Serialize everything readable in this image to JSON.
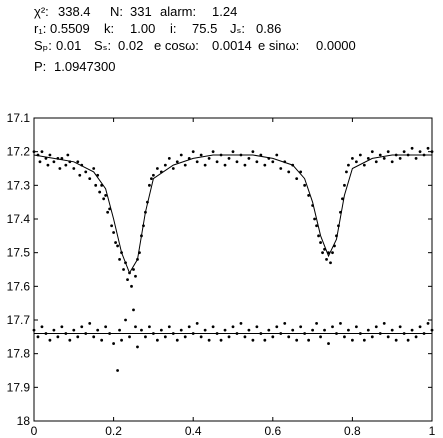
{
  "stats": {
    "chi2_label": "χ²:",
    "chi2_value": "338.4",
    "n_label": "N:",
    "n_value": "331",
    "alarm_label": "alarm:",
    "alarm_value": "1.24",
    "r1_label": "r₁:",
    "r1_value": "0.5509",
    "k_label": "k:",
    "k_value": "1.00",
    "i_label": "i:",
    "i_value": "75.5",
    "js_label": "Jₛ:",
    "js_value": "0.86",
    "sp_label": "Sₚ:",
    "sp_value": "0.01",
    "ss_label": "Sₛ:",
    "ss_value": "0.02",
    "ecosw_label": "e cosω:",
    "ecosw_value": "0.0014",
    "esinw_label": "e sinω:",
    "esinw_value": "0.0000",
    "p_label": "P:",
    "p_value": "1.0947300"
  },
  "chart_data": {
    "type": "scatter",
    "title": "",
    "xlabel": "",
    "ylabel": "",
    "xlim": [
      0,
      1
    ],
    "ylim": [
      17.1,
      18
    ],
    "y_inverted": true,
    "grid": false,
    "xticks": [
      "0",
      "0.2",
      "0.4",
      "0.6",
      "0.8",
      "1"
    ],
    "yticks": [
      "17.1",
      "17.2",
      "17.3",
      "17.4",
      "17.5",
      "17.6",
      "17.7",
      "17.8",
      "17.9",
      "18"
    ],
    "light_curve_points": [
      [
        0.0,
        17.2
      ],
      [
        0.01,
        17.21
      ],
      [
        0.015,
        17.23
      ],
      [
        0.02,
        17.2
      ],
      [
        0.03,
        17.22
      ],
      [
        0.035,
        17.24
      ],
      [
        0.04,
        17.21
      ],
      [
        0.05,
        17.23
      ],
      [
        0.06,
        17.22
      ],
      [
        0.065,
        17.25
      ],
      [
        0.07,
        17.22
      ],
      [
        0.08,
        17.24
      ],
      [
        0.085,
        17.21
      ],
      [
        0.09,
        17.23
      ],
      [
        0.1,
        17.25
      ],
      [
        0.11,
        17.23
      ],
      [
        0.115,
        17.27
      ],
      [
        0.12,
        17.24
      ],
      [
        0.13,
        17.26
      ],
      [
        0.14,
        17.28
      ],
      [
        0.15,
        17.25
      ],
      [
        0.155,
        17.3
      ],
      [
        0.16,
        17.27
      ],
      [
        0.165,
        17.32
      ],
      [
        0.17,
        17.3
      ],
      [
        0.175,
        17.34
      ],
      [
        0.18,
        17.33
      ],
      [
        0.185,
        17.38
      ],
      [
        0.19,
        17.37
      ],
      [
        0.195,
        17.42
      ],
      [
        0.2,
        17.44
      ],
      [
        0.205,
        17.47
      ],
      [
        0.21,
        17.48
      ],
      [
        0.215,
        17.52
      ],
      [
        0.22,
        17.5
      ],
      [
        0.225,
        17.55
      ],
      [
        0.23,
        17.53
      ],
      [
        0.235,
        17.58
      ],
      [
        0.24,
        17.56
      ],
      [
        0.245,
        17.6
      ],
      [
        0.25,
        17.55
      ],
      [
        0.255,
        17.57
      ],
      [
        0.26,
        17.52
      ],
      [
        0.265,
        17.5
      ],
      [
        0.27,
        17.45
      ],
      [
        0.275,
        17.42
      ],
      [
        0.28,
        17.38
      ],
      [
        0.285,
        17.35
      ],
      [
        0.29,
        17.3
      ],
      [
        0.295,
        17.28
      ],
      [
        0.3,
        17.27
      ],
      [
        0.31,
        17.25
      ],
      [
        0.32,
        17.26
      ],
      [
        0.33,
        17.24
      ],
      [
        0.34,
        17.22
      ],
      [
        0.35,
        17.25
      ],
      [
        0.36,
        17.23
      ],
      [
        0.37,
        17.21
      ],
      [
        0.38,
        17.24
      ],
      [
        0.39,
        17.22
      ],
      [
        0.4,
        17.2
      ],
      [
        0.41,
        17.23
      ],
      [
        0.42,
        17.21
      ],
      [
        0.43,
        17.24
      ],
      [
        0.44,
        17.22
      ],
      [
        0.45,
        17.2
      ],
      [
        0.46,
        17.23
      ],
      [
        0.47,
        17.21
      ],
      [
        0.48,
        17.24
      ],
      [
        0.49,
        17.22
      ],
      [
        0.5,
        17.2
      ],
      [
        0.51,
        17.23
      ],
      [
        0.52,
        17.21
      ],
      [
        0.53,
        17.24
      ],
      [
        0.54,
        17.22
      ],
      [
        0.55,
        17.2
      ],
      [
        0.56,
        17.23
      ],
      [
        0.57,
        17.21
      ],
      [
        0.58,
        17.24
      ],
      [
        0.59,
        17.22
      ],
      [
        0.6,
        17.23
      ],
      [
        0.61,
        17.21
      ],
      [
        0.62,
        17.25
      ],
      [
        0.63,
        17.23
      ],
      [
        0.64,
        17.26
      ],
      [
        0.65,
        17.24
      ],
      [
        0.66,
        17.28
      ],
      [
        0.67,
        17.26
      ],
      [
        0.68,
        17.3
      ],
      [
        0.69,
        17.33
      ],
      [
        0.7,
        17.36
      ],
      [
        0.705,
        17.4
      ],
      [
        0.71,
        17.42
      ],
      [
        0.715,
        17.45
      ],
      [
        0.72,
        17.47
      ],
      [
        0.725,
        17.5
      ],
      [
        0.73,
        17.49
      ],
      [
        0.735,
        17.52
      ],
      [
        0.74,
        17.5
      ],
      [
        0.745,
        17.53
      ],
      [
        0.75,
        17.5
      ],
      [
        0.755,
        17.48
      ],
      [
        0.76,
        17.45
      ],
      [
        0.765,
        17.42
      ],
      [
        0.77,
        17.38
      ],
      [
        0.775,
        17.34
      ],
      [
        0.78,
        17.3
      ],
      [
        0.785,
        17.26
      ],
      [
        0.79,
        17.24
      ],
      [
        0.8,
        17.22
      ],
      [
        0.81,
        17.23
      ],
      [
        0.82,
        17.21
      ],
      [
        0.83,
        17.24
      ],
      [
        0.84,
        17.22
      ],
      [
        0.85,
        17.2
      ],
      [
        0.86,
        17.23
      ],
      [
        0.87,
        17.21
      ],
      [
        0.88,
        17.22
      ],
      [
        0.89,
        17.2
      ],
      [
        0.9,
        17.23
      ],
      [
        0.91,
        17.21
      ],
      [
        0.92,
        17.22
      ],
      [
        0.93,
        17.2
      ],
      [
        0.94,
        17.21
      ],
      [
        0.95,
        17.19
      ],
      [
        0.96,
        17.22
      ],
      [
        0.97,
        17.2
      ],
      [
        0.98,
        17.21
      ],
      [
        0.99,
        17.19
      ],
      [
        1.0,
        17.2
      ]
    ],
    "model_curve": [
      [
        0.0,
        17.21
      ],
      [
        0.05,
        17.22
      ],
      [
        0.1,
        17.23
      ],
      [
        0.15,
        17.26
      ],
      [
        0.18,
        17.31
      ],
      [
        0.2,
        17.4
      ],
      [
        0.22,
        17.5
      ],
      [
        0.24,
        17.56
      ],
      [
        0.26,
        17.52
      ],
      [
        0.28,
        17.38
      ],
      [
        0.3,
        17.28
      ],
      [
        0.35,
        17.24
      ],
      [
        0.4,
        17.22
      ],
      [
        0.45,
        17.21
      ],
      [
        0.5,
        17.21
      ],
      [
        0.55,
        17.21
      ],
      [
        0.6,
        17.22
      ],
      [
        0.65,
        17.24
      ],
      [
        0.68,
        17.28
      ],
      [
        0.7,
        17.35
      ],
      [
        0.72,
        17.45
      ],
      [
        0.74,
        17.51
      ],
      [
        0.76,
        17.46
      ],
      [
        0.78,
        17.33
      ],
      [
        0.8,
        17.25
      ],
      [
        0.85,
        17.22
      ],
      [
        0.9,
        17.21
      ],
      [
        0.95,
        17.21
      ],
      [
        1.0,
        17.21
      ]
    ],
    "residual_points": [
      [
        0.0,
        17.73
      ],
      [
        0.01,
        17.75
      ],
      [
        0.02,
        17.72
      ],
      [
        0.03,
        17.74
      ],
      [
        0.04,
        17.76
      ],
      [
        0.05,
        17.73
      ],
      [
        0.06,
        17.75
      ],
      [
        0.07,
        17.72
      ],
      [
        0.08,
        17.74
      ],
      [
        0.09,
        17.76
      ],
      [
        0.1,
        17.73
      ],
      [
        0.11,
        17.75
      ],
      [
        0.12,
        17.72
      ],
      [
        0.13,
        17.74
      ],
      [
        0.14,
        17.71
      ],
      [
        0.15,
        17.75
      ],
      [
        0.16,
        17.73
      ],
      [
        0.17,
        17.76
      ],
      [
        0.18,
        17.72
      ],
      [
        0.19,
        17.74
      ],
      [
        0.2,
        17.77
      ],
      [
        0.21,
        17.85
      ],
      [
        0.215,
        17.73
      ],
      [
        0.22,
        17.76
      ],
      [
        0.23,
        17.7
      ],
      [
        0.24,
        17.75
      ],
      [
        0.25,
        17.67
      ],
      [
        0.255,
        17.72
      ],
      [
        0.26,
        17.78
      ],
      [
        0.27,
        17.73
      ],
      [
        0.28,
        17.75
      ],
      [
        0.29,
        17.72
      ],
      [
        0.3,
        17.74
      ],
      [
        0.31,
        17.76
      ],
      [
        0.32,
        17.73
      ],
      [
        0.33,
        17.75
      ],
      [
        0.34,
        17.72
      ],
      [
        0.35,
        17.74
      ],
      [
        0.36,
        17.76
      ],
      [
        0.37,
        17.73
      ],
      [
        0.38,
        17.75
      ],
      [
        0.39,
        17.72
      ],
      [
        0.4,
        17.74
      ],
      [
        0.41,
        17.71
      ],
      [
        0.42,
        17.75
      ],
      [
        0.43,
        17.73
      ],
      [
        0.44,
        17.76
      ],
      [
        0.45,
        17.72
      ],
      [
        0.46,
        17.74
      ],
      [
        0.47,
        17.76
      ],
      [
        0.48,
        17.73
      ],
      [
        0.49,
        17.75
      ],
      [
        0.5,
        17.72
      ],
      [
        0.51,
        17.74
      ],
      [
        0.52,
        17.71
      ],
      [
        0.53,
        17.75
      ],
      [
        0.54,
        17.73
      ],
      [
        0.55,
        17.76
      ],
      [
        0.56,
        17.72
      ],
      [
        0.57,
        17.74
      ],
      [
        0.58,
        17.76
      ],
      [
        0.59,
        17.73
      ],
      [
        0.6,
        17.75
      ],
      [
        0.61,
        17.72
      ],
      [
        0.62,
        17.74
      ],
      [
        0.63,
        17.71
      ],
      [
        0.64,
        17.75
      ],
      [
        0.65,
        17.73
      ],
      [
        0.66,
        17.76
      ],
      [
        0.67,
        17.72
      ],
      [
        0.68,
        17.74
      ],
      [
        0.69,
        17.76
      ],
      [
        0.7,
        17.73
      ],
      [
        0.71,
        17.71
      ],
      [
        0.72,
        17.75
      ],
      [
        0.73,
        17.73
      ],
      [
        0.74,
        17.77
      ],
      [
        0.75,
        17.72
      ],
      [
        0.76,
        17.74
      ],
      [
        0.77,
        17.71
      ],
      [
        0.78,
        17.75
      ],
      [
        0.79,
        17.73
      ],
      [
        0.8,
        17.76
      ],
      [
        0.81,
        17.72
      ],
      [
        0.82,
        17.74
      ],
      [
        0.83,
        17.76
      ],
      [
        0.84,
        17.73
      ],
      [
        0.85,
        17.75
      ],
      [
        0.86,
        17.72
      ],
      [
        0.87,
        17.74
      ],
      [
        0.88,
        17.71
      ],
      [
        0.89,
        17.75
      ],
      [
        0.9,
        17.73
      ],
      [
        0.91,
        17.76
      ],
      [
        0.92,
        17.72
      ],
      [
        0.93,
        17.74
      ],
      [
        0.94,
        17.76
      ],
      [
        0.95,
        17.73
      ],
      [
        0.96,
        17.75
      ],
      [
        0.97,
        17.72
      ],
      [
        0.98,
        17.74
      ],
      [
        0.99,
        17.71
      ],
      [
        1.0,
        17.73
      ]
    ],
    "residual_line_y": 17.74
  }
}
